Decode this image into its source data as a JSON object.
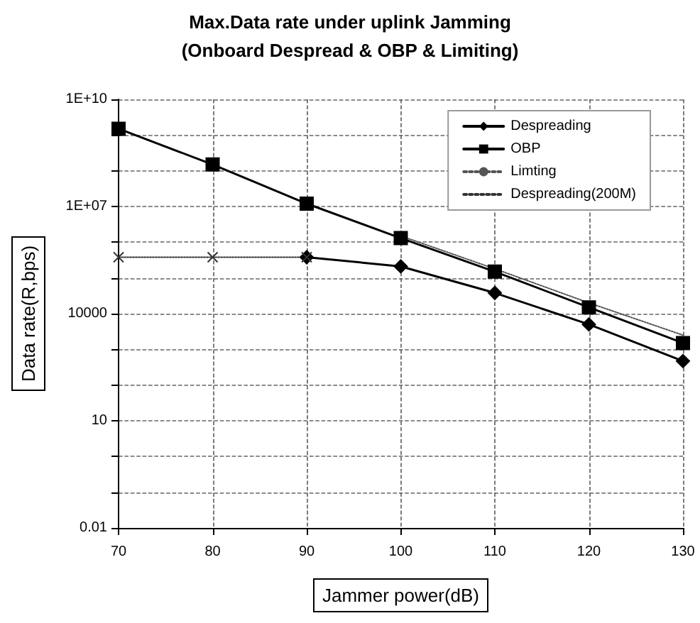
{
  "chart_data": {
    "type": "line",
    "title": "Max.Data rate under uplink Jamming",
    "subtitle": "(Onboard Despread & OBP & Limiting)",
    "xlabel": "Jammer power(dB)",
    "ylabel": "Data rate(R,bps)",
    "log": "y",
    "series": [
      {
        "name": "Despreading",
        "color": "#000000",
        "marker": "diamond",
        "line_style": "solid",
        "x": [
          90,
          100,
          110,
          120,
          130
        ],
        "values": [
          380000,
          210000,
          38000,
          5000,
          470
        ]
      },
      {
        "name": "OBP",
        "color": "#000000",
        "marker": "square",
        "line_style": "solid",
        "x": [
          70,
          80,
          90,
          100,
          110,
          120,
          130
        ],
        "values": [
          1500000000,
          150000000,
          12000000,
          1300000,
          150000,
          15000,
          1500
        ]
      },
      {
        "name": "Limting",
        "color": "#555555",
        "marker": "none",
        "line_style": "dotted",
        "x": [
          100,
          110,
          120,
          130
        ],
        "values": [
          1500000,
          180000,
          20000,
          2500
        ]
      },
      {
        "name": "Despreading(200M)",
        "color": "#333333",
        "marker": "cross",
        "line_style": "dotted",
        "x": [
          70,
          80,
          90
        ],
        "values": [
          380000,
          380000,
          380000
        ]
      }
    ],
    "xlim": [
      70,
      130
    ],
    "xticks": [
      70,
      80,
      90,
      100,
      110,
      120,
      130
    ],
    "ylim": [
      0.01,
      10000000000
    ],
    "yticks": [
      0.01,
      {
        "value": 0.1,
        "label": null
      },
      {
        "value": 1,
        "label": null
      },
      10,
      {
        "value": 100,
        "label": null
      },
      {
        "value": 1000,
        "label": null
      },
      10000,
      {
        "value": 100000,
        "label": null
      },
      {
        "value": 1000000,
        "label": null
      },
      {
        "value": 10000000,
        "label": "1E+07"
      },
      {
        "value": 100000000,
        "label": null
      },
      {
        "value": 1000000000,
        "label": null
      },
      {
        "value": 10000000000,
        "label": "1E+10"
      }
    ],
    "grid": true,
    "legend": "top right"
  }
}
